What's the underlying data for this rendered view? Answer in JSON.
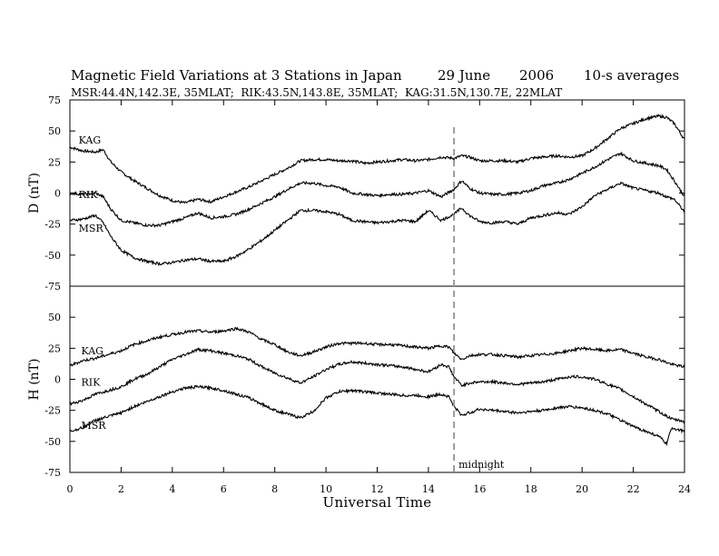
{
  "chart_data": {
    "type": "line",
    "header": {
      "title": "Magnetic Field Variations at 3 Stations in Japan",
      "date": "29 June",
      "year": "2006",
      "averaging": "10-s averages",
      "stations_info": "MSR:44.4N,142.3E, 35MLAT;  RIK:43.5N,143.8E, 35MLAT;  KAG:31.5N,130.7E, 22MLAT"
    },
    "xlabel": "Universal Time",
    "xlim": [
      0,
      24
    ],
    "xticks": [
      "0",
      "2",
      "4",
      "6",
      "8",
      "10",
      "12",
      "14",
      "16",
      "18",
      "20",
      "22",
      "24"
    ],
    "annotation": {
      "label": "midnight",
      "x": 15
    },
    "panels": [
      {
        "name": "D",
        "ylabel": "D (nT)",
        "ylim": [
          -75,
          75
        ],
        "yticks": [
          "-75",
          "-50",
          "-25",
          "0",
          "25",
          "50",
          "75"
        ],
        "series": [
          {
            "name": "KAG",
            "label_x": 0.2,
            "label_y": 40,
            "x": [
              0,
              0.5,
              1.0,
              1.3,
              1.6,
              2.0,
              2.5,
              3.0,
              3.5,
              4.0,
              4.5,
              5.0,
              5.5,
              6.0,
              6.5,
              7.0,
              7.5,
              8.0,
              8.5,
              9.0,
              9.5,
              10.0,
              10.5,
              11.0,
              11.5,
              12.0,
              12.5,
              13.0,
              13.5,
              14.0,
              14.5,
              15.0,
              15.3,
              15.6,
              16.0,
              16.5,
              17.0,
              17.5,
              18.0,
              18.5,
              19.0,
              19.5,
              20.0,
              20.5,
              21.0,
              21.5,
              22.0,
              22.5,
              23.0,
              23.3,
              23.6,
              24.0
            ],
            "y": [
              37,
              34,
              33,
              35,
              25,
              17,
              10,
              4,
              -2,
              -6,
              -8,
              -5,
              -7,
              -3,
              1,
              5,
              10,
              15,
              20,
              26,
              27,
              27,
              26,
              26,
              24,
              25,
              26,
              27,
              26,
              27,
              29,
              28,
              30,
              29,
              26,
              26,
              26,
              25,
              28,
              29,
              30,
              29,
              30,
              36,
              44,
              52,
              56,
              60,
              62,
              61,
              56,
              43
            ]
          },
          {
            "name": "RIK",
            "label_x": 0.2,
            "label_y": -4,
            "x": [
              0,
              0.5,
              1.0,
              1.3,
              1.6,
              2.0,
              2.5,
              3.0,
              3.5,
              4.0,
              4.5,
              5.0,
              5.5,
              6.0,
              6.5,
              7.0,
              7.5,
              8.0,
              8.5,
              9.0,
              9.5,
              10.0,
              10.5,
              11.0,
              11.5,
              12.0,
              12.5,
              13.0,
              13.5,
              14.0,
              14.5,
              15.0,
              15.3,
              15.6,
              16.0,
              16.5,
              17.0,
              17.5,
              18.0,
              18.5,
              19.0,
              19.5,
              20.0,
              20.5,
              21.0,
              21.5,
              22.0,
              22.5,
              23.0,
              23.3,
              23.6,
              24.0
            ],
            "y": [
              0,
              -1,
              0,
              -3,
              -13,
              -22,
              -24,
              -26,
              -26,
              -23,
              -20,
              -16,
              -20,
              -19,
              -17,
              -13,
              -8,
              -3,
              3,
              8,
              8,
              6,
              5,
              0,
              -1,
              -2,
              -1,
              -1,
              0,
              2,
              -3,
              3,
              10,
              4,
              0,
              -1,
              -1,
              0,
              2,
              6,
              8,
              11,
              16,
              21,
              27,
              32,
              26,
              24,
              22,
              19,
              10,
              -3
            ]
          },
          {
            "name": "MSR",
            "label_x": 0.2,
            "label_y": -31,
            "x": [
              0,
              0.5,
              1.0,
              1.3,
              1.6,
              2.0,
              2.5,
              3.0,
              3.5,
              4.0,
              4.5,
              5.0,
              5.5,
              6.0,
              6.5,
              7.0,
              7.5,
              8.0,
              8.5,
              9.0,
              9.5,
              10.0,
              10.5,
              11.0,
              11.5,
              12.0,
              12.5,
              13.0,
              13.5,
              14.0,
              14.5,
              15.0,
              15.3,
              15.6,
              16.0,
              16.5,
              17.0,
              17.5,
              18.0,
              18.5,
              19.0,
              19.5,
              20.0,
              20.5,
              21.0,
              21.5,
              22.0,
              22.5,
              23.0,
              23.3,
              23.6,
              24.0
            ],
            "y": [
              -22,
              -21,
              -18,
              -24,
              -35,
              -46,
              -52,
              -55,
              -57,
              -56,
              -54,
              -53,
              -55,
              -55,
              -51,
              -45,
              -38,
              -30,
              -22,
              -14,
              -14,
              -15,
              -17,
              -22,
              -23,
              -24,
              -23,
              -22,
              -23,
              -14,
              -22,
              -17,
              -12,
              -18,
              -23,
              -24,
              -23,
              -25,
              -20,
              -18,
              -16,
              -17,
              -11,
              -2,
              3,
              8,
              4,
              2,
              0,
              -3,
              -5,
              -15
            ]
          }
        ]
      },
      {
        "name": "H",
        "ylabel": "H (nT)",
        "ylim": [
          -75,
          75
        ],
        "yticks": [
          "-75",
          "-50",
          "-25",
          "0",
          "25",
          "50",
          "75"
        ],
        "series": [
          {
            "name": "KAG",
            "label_x": 0.3,
            "label_y": 20,
            "x": [
              0,
              0.5,
              1.0,
              1.5,
              2.0,
              2.5,
              3.0,
              3.5,
              4.0,
              4.5,
              5.0,
              5.5,
              6.0,
              6.5,
              7.0,
              7.5,
              8.0,
              8.5,
              9.0,
              9.5,
              10.0,
              10.5,
              11.0,
              11.5,
              12.0,
              12.5,
              13.0,
              13.5,
              14.0,
              14.5,
              14.8,
              15.0,
              15.3,
              15.6,
              16.0,
              16.5,
              17.0,
              17.5,
              18.0,
              18.5,
              19.0,
              19.5,
              20.0,
              20.5,
              21.0,
              21.5,
              22.0,
              22.5,
              23.0,
              23.5,
              24.0
            ],
            "y": [
              11,
              15,
              17,
              20,
              23,
              28,
              31,
              34,
              36,
              38,
              39,
              38,
              39,
              41,
              38,
              32,
              28,
              22,
              19,
              22,
              26,
              29,
              29,
              29,
              28,
              28,
              27,
              26,
              25,
              27,
              26,
              21,
              16,
              19,
              20,
              20,
              19,
              18,
              19,
              20,
              21,
              23,
              25,
              24,
              23,
              24,
              21,
              18,
              16,
              12,
              10
            ]
          },
          {
            "name": "RIK",
            "label_x": 0.3,
            "label_y": -5,
            "x": [
              0,
              0.5,
              1.0,
              1.5,
              2.0,
              2.5,
              3.0,
              3.5,
              4.0,
              4.5,
              5.0,
              5.5,
              6.0,
              6.5,
              7.0,
              7.5,
              8.0,
              8.5,
              9.0,
              9.5,
              10.0,
              10.5,
              11.0,
              11.5,
              12.0,
              12.5,
              13.0,
              13.5,
              14.0,
              14.5,
              14.8,
              15.0,
              15.3,
              15.6,
              16.0,
              16.5,
              17.0,
              17.5,
              18.0,
              18.5,
              19.0,
              19.5,
              20.0,
              20.5,
              21.0,
              21.5,
              22.0,
              22.5,
              23.0,
              23.5,
              24.0
            ],
            "y": [
              -20,
              -17,
              -12,
              -9,
              -6,
              0,
              4,
              10,
              16,
              20,
              24,
              23,
              21,
              19,
              16,
              10,
              5,
              1,
              -3,
              2,
              8,
              12,
              14,
              13,
              12,
              11,
              10,
              8,
              6,
              12,
              10,
              2,
              -5,
              -3,
              -2,
              -2,
              -3,
              -4,
              -3,
              -2,
              0,
              2,
              2,
              0,
              -4,
              -8,
              -14,
              -20,
              -26,
              -32,
              -34
            ]
          },
          {
            "name": "MSR",
            "label_x": 0.3,
            "label_y": -40,
            "x": [
              0,
              0.5,
              1.0,
              1.5,
              2.0,
              2.5,
              3.0,
              3.5,
              4.0,
              4.5,
              5.0,
              5.5,
              6.0,
              6.5,
              7.0,
              7.5,
              8.0,
              8.5,
              9.0,
              9.5,
              10.0,
              10.5,
              11.0,
              11.5,
              12.0,
              12.5,
              13.0,
              13.5,
              14.0,
              14.5,
              14.8,
              15.0,
              15.3,
              15.6,
              16.0,
              16.5,
              17.0,
              17.5,
              18.0,
              18.5,
              19.0,
              19.5,
              20.0,
              20.5,
              21.0,
              21.5,
              22.0,
              22.5,
              23.0,
              23.3,
              23.5,
              24.0
            ],
            "y": [
              -42,
              -39,
              -33,
              -30,
              -27,
              -22,
              -18,
              -14,
              -10,
              -7,
              -6,
              -7,
              -9,
              -12,
              -15,
              -20,
              -25,
              -28,
              -31,
              -26,
              -15,
              -10,
              -9,
              -10,
              -11,
              -12,
              -13,
              -13,
              -14,
              -12,
              -14,
              -22,
              -29,
              -27,
              -24,
              -25,
              -26,
              -27,
              -26,
              -25,
              -23,
              -22,
              -23,
              -25,
              -28,
              -33,
              -38,
              -42,
              -46,
              -52,
              -39,
              -42
            ]
          }
        ]
      }
    ]
  }
}
